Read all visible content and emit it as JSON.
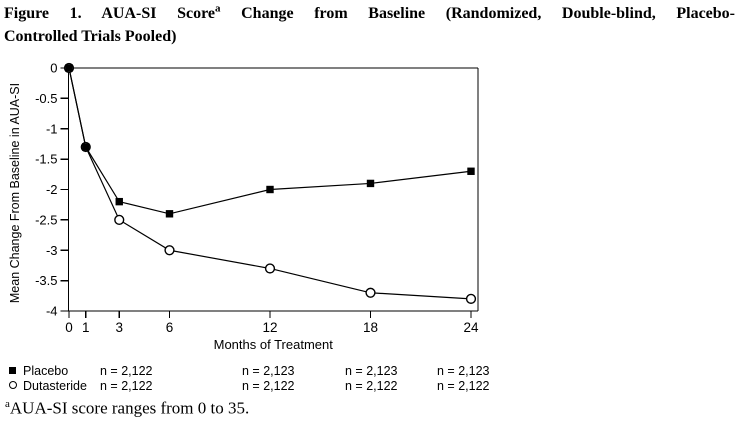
{
  "title": {
    "line1_pre": "Figure 1. AUA-SI Score",
    "line1_sup": "a",
    "line1_post": " Change from Baseline (Randomized, Double-blind, Placebo-",
    "line2": "Controlled Trials Pooled)"
  },
  "chart_data": {
    "type": "line",
    "x": [
      0,
      1,
      3,
      6,
      12,
      18,
      24
    ],
    "series": [
      {
        "name": "Placebo",
        "marker": "filled-square",
        "values": [
          0,
          -1.3,
          -2.2,
          -2.4,
          -2.0,
          -1.9,
          -1.7
        ]
      },
      {
        "name": "Dutasteride",
        "marker": "open-circle",
        "values": [
          0,
          -1.3,
          -2.5,
          -3.0,
          -3.3,
          -3.7,
          -3.8
        ]
      }
    ],
    "xlabel": "Months of Treatment",
    "ylabel": "Mean Change From Baseline in AUA-SI",
    "xticks": [
      0,
      1,
      3,
      6,
      12,
      18,
      24
    ],
    "xtick_labels": [
      "0",
      "1",
      "3",
      "6",
      "12",
      "18",
      "24"
    ],
    "yticks": [
      0,
      -0.5,
      -1,
      -1.5,
      -2,
      -2.5,
      -3,
      -3.5,
      -4
    ],
    "ytick_labels": [
      "0",
      "-0.5",
      "-1",
      "-1.5",
      "-2",
      "-2.5",
      "-3",
      "-3.5",
      "-4"
    ],
    "xlim": [
      0,
      24
    ],
    "ylim": [
      -4,
      0
    ],
    "grid": false,
    "plot_border": "full-box",
    "legend_position": "below",
    "line_color": "#000000"
  },
  "legend": {
    "rows": [
      {
        "name": "Placebo",
        "marker": "filled-square",
        "counts": [
          "n = 2,122",
          "n = 2,123",
          "n = 2,123",
          "n = 2,123"
        ]
      },
      {
        "name": "Dutasteride",
        "marker": "open-circle",
        "counts": [
          "n = 2,122",
          "n = 2,122",
          "n = 2,122",
          "n = 2,122"
        ]
      }
    ]
  },
  "footnote": {
    "sup": "a",
    "text": "AUA-SI score ranges from 0 to 35."
  },
  "colors": {
    "foreground": "#000000",
    "background": "#ffffff"
  }
}
